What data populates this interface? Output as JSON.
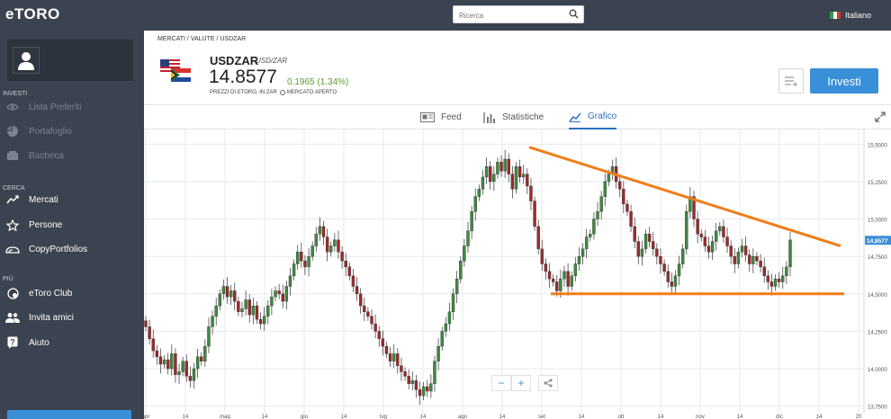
{
  "app": {
    "logo": "eTORO",
    "language": "Italiano"
  },
  "search": {
    "placeholder": "Ricerca"
  },
  "sidebar": {
    "sections": [
      {
        "title": "INVESTI",
        "items": [
          {
            "label": "Lista Preferiti",
            "icon": "eye-icon",
            "disabled": true
          },
          {
            "label": "Portafoglio",
            "icon": "pie-chart-icon",
            "disabled": true
          },
          {
            "label": "Bacheca",
            "icon": "bank-icon",
            "disabled": true
          }
        ]
      },
      {
        "title": "CERCA",
        "items": [
          {
            "label": "Mercati",
            "icon": "trend-icon",
            "disabled": false
          },
          {
            "label": "Persone",
            "icon": "star-icon",
            "disabled": false
          },
          {
            "label": "CopyPortfolios",
            "icon": "copy-portfolio-icon",
            "disabled": false
          }
        ]
      },
      {
        "title": "PIÙ",
        "items": [
          {
            "label": "eToro Club",
            "icon": "club-icon",
            "disabled": false
          },
          {
            "label": "Invita amici",
            "icon": "invite-friends-icon",
            "disabled": false
          },
          {
            "label": "Aiuto",
            "icon": "help-icon",
            "disabled": false
          }
        ]
      }
    ]
  },
  "breadcrumb": "MERCATI / VALUTE / USDZAR",
  "instrument": {
    "symbol": "USDZAR",
    "name": "USD/ZAR",
    "price": "14.8577",
    "change": "0.1965 (1.34%)",
    "price_note": "PREZZI DI ETORO, IN ZAR",
    "market_status": "MERCATO APERTO"
  },
  "actions": {
    "invest_label": "Investi"
  },
  "tabs": [
    {
      "label": "Feed",
      "icon": "feed-icon",
      "active": false
    },
    {
      "label": "Statistiche",
      "icon": "stats-icon",
      "active": false
    },
    {
      "label": "Grafico",
      "icon": "chart-icon",
      "active": true
    }
  ],
  "colors": {
    "sidebar": "#3b4350",
    "accent": "#3a8fd9",
    "up": "#3f8a3f",
    "down": "#9c2a2a",
    "trendline": "#f07d19",
    "change": "#5a9b2e"
  },
  "chart_data": {
    "type": "candlestick",
    "symbol": "USDZAR",
    "x_tick_labels": [
      "apr",
      "14",
      "mag",
      "14",
      "giu",
      "14",
      "lug",
      "14",
      "ago",
      "14",
      "set",
      "14",
      "ott",
      "14",
      "nov",
      "14",
      "dic",
      "14",
      "20"
    ],
    "y_tick_labels": [
      "15,5000",
      "15,2500",
      "15,0000",
      "14,7500",
      "14,5000",
      "14,2500",
      "14,0000",
      "13,7500"
    ],
    "ylim": [
      13.7,
      15.55
    ],
    "last_price_label": "14,8577",
    "closes": [
      14.28,
      14.2,
      14.12,
      14.08,
      14.03,
      14.06,
      14.0,
      14.1,
      13.96,
      13.98,
      14.05,
      13.95,
      13.92,
      14.0,
      14.08,
      14.05,
      14.15,
      14.28,
      14.35,
      14.42,
      14.5,
      14.55,
      14.48,
      14.52,
      14.45,
      14.38,
      14.4,
      14.46,
      14.36,
      14.42,
      14.33,
      14.3,
      14.35,
      14.42,
      14.48,
      14.52,
      14.5,
      14.45,
      14.55,
      14.62,
      14.7,
      14.78,
      14.72,
      14.68,
      14.75,
      14.82,
      14.9,
      14.95,
      14.88,
      14.78,
      14.82,
      14.86,
      14.78,
      14.72,
      14.68,
      14.62,
      14.55,
      14.5,
      14.42,
      14.38,
      14.35,
      14.3,
      14.25,
      14.2,
      14.15,
      14.1,
      14.05,
      14.1,
      14.02,
      13.98,
      13.95,
      13.9,
      13.92,
      13.86,
      13.82,
      13.88,
      13.85,
      13.9,
      14.05,
      14.15,
      14.25,
      14.3,
      14.38,
      14.5,
      14.6,
      14.72,
      14.82,
      14.92,
      15.05,
      15.15,
      15.2,
      15.28,
      15.35,
      15.25,
      15.3,
      15.38,
      15.32,
      15.4,
      15.3,
      15.2,
      15.35,
      15.28,
      15.3,
      15.22,
      15.12,
      14.95,
      14.8,
      14.7,
      14.65,
      14.6,
      14.58,
      14.52,
      14.6,
      14.65,
      14.55,
      14.62,
      14.7,
      14.75,
      14.8,
      14.88,
      14.9,
      15.0,
      15.05,
      15.15,
      15.25,
      15.3,
      15.35,
      15.25,
      15.2,
      15.1,
      15.05,
      14.95,
      14.85,
      14.75,
      14.8,
      14.9,
      14.85,
      14.8,
      14.75,
      14.7,
      14.65,
      14.58,
      14.55,
      14.62,
      14.7,
      14.8,
      15.05,
      15.15,
      15.0,
      14.9,
      14.88,
      14.82,
      14.78,
      14.85,
      14.92,
      14.95,
      14.88,
      14.82,
      14.75,
      14.7,
      14.78,
      14.82,
      14.76,
      14.7,
      14.75,
      14.72,
      14.68,
      14.62,
      14.58,
      14.55,
      14.6,
      14.58,
      14.62,
      14.68,
      14.86
    ]
  },
  "chart_annotations": {
    "resistance": [
      [
        15.48,
        14.82
      ]
    ],
    "support": [
      [
        14.5,
        14.5
      ]
    ]
  }
}
